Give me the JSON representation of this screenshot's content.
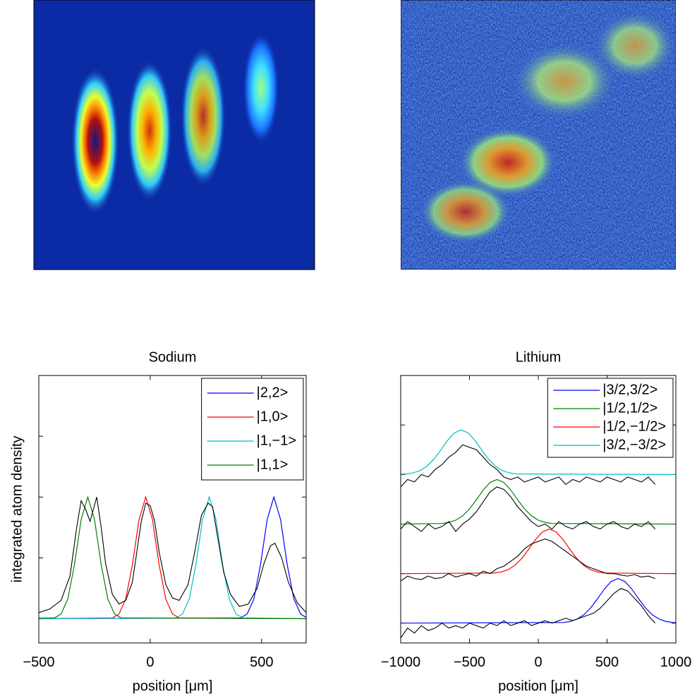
{
  "chart_data": [
    {
      "type": "line",
      "title": "Sodium",
      "xlabel": "position [μm]",
      "ylabel": "integrated atom density",
      "xlim": [
        -500,
        700
      ],
      "xticks": [
        {
          "value": -500,
          "label": "−500"
        },
        0,
        500
      ],
      "ylim": [
        -0.2,
        2
      ],
      "yticks": [
        0,
        0.5,
        1,
        1.5
      ],
      "legend": "northeast",
      "series": [
        {
          "name": "|2,2>",
          "color": "#0000ff",
          "x": [
            -500,
            405,
            435,
            465,
            495,
            525,
            555,
            585,
            615,
            645,
            675,
            700
          ],
          "values": [
            0,
            0.006,
            0.038,
            0.16,
            0.443,
            0.816,
            1,
            0.816,
            0.443,
            0.16,
            0.038,
            0.009
          ]
        },
        {
          "name": "|1,0>",
          "color": "#ff0000",
          "x": [
            -500,
            -170,
            -140,
            -110,
            -80,
            -50,
            -20,
            10,
            40,
            70,
            100,
            130,
            700
          ],
          "values": [
            0,
            0.006,
            0.038,
            0.16,
            0.443,
            0.816,
            1,
            0.816,
            0.443,
            0.16,
            0.038,
            0.006,
            0
          ]
        },
        {
          "name": "|1,−1>",
          "color": "#00bfbf",
          "x": [
            -500,
            115,
            145,
            175,
            205,
            235,
            265,
            295,
            325,
            355,
            385,
            415,
            700
          ],
          "values": [
            0,
            0.006,
            0.038,
            0.16,
            0.443,
            0.816,
            1,
            0.816,
            0.443,
            0.16,
            0.038,
            0.006,
            0
          ]
        },
        {
          "name": "|1,1>",
          "color": "#008000",
          "x": [
            -500,
            -430,
            -400,
            -370,
            -340,
            -310,
            -280,
            -250,
            -220,
            -190,
            -160,
            -130,
            700
          ],
          "values": [
            0.004,
            0.006,
            0.038,
            0.16,
            0.443,
            0.816,
            1,
            0.816,
            0.443,
            0.16,
            0.038,
            0.006,
            0
          ]
        },
        {
          "color": "#000000",
          "x": [
            -500,
            -450,
            -400,
            -360,
            -330,
            -310,
            -290,
            -270,
            -255,
            -240,
            -220,
            -200,
            -170,
            -140,
            -110,
            -80,
            -60,
            -40,
            -20,
            0,
            20,
            40,
            70,
            100,
            130,
            170,
            200,
            230,
            260,
            280,
            300,
            330,
            360,
            400,
            440,
            480,
            510,
            540,
            560,
            590,
            620,
            660,
            700
          ],
          "values": [
            0.05,
            0.08,
            0.15,
            0.35,
            0.75,
            0.97,
            0.9,
            0.8,
            0.9,
            1.0,
            0.75,
            0.45,
            0.2,
            0.12,
            0.15,
            0.3,
            0.55,
            0.8,
            0.95,
            0.93,
            0.8,
            0.55,
            0.28,
            0.17,
            0.15,
            0.28,
            0.55,
            0.85,
            0.95,
            0.92,
            0.7,
            0.38,
            0.2,
            0.1,
            0.12,
            0.25,
            0.45,
            0.6,
            0.62,
            0.5,
            0.3,
            0.13,
            0.05
          ]
        }
      ]
    },
    {
      "type": "line",
      "title": "Lithium",
      "xlabel": "position [μm]",
      "xlim": [
        -1000,
        1000
      ],
      "xticks": [
        {
          "value": -1000,
          "label": "−1000"
        },
        {
          "value": -500,
          "label": "−500"
        },
        0,
        500,
        1000
      ],
      "ylim": [
        -0.4,
        5
      ],
      "yticks": [
        0,
        1,
        2,
        3,
        4
      ],
      "legend": "northeast",
      "series": [
        {
          "name": "|3/2,3/2>",
          "color": "#0000ff",
          "x": [
            -1000,
            180,
            230,
            280,
            330,
            380,
            430,
            480,
            530,
            580,
            630,
            680,
            730,
            780,
            830,
            880,
            930,
            980,
            1000
          ],
          "values": [
            0,
            0.012,
            0.033,
            0.079,
            0.166,
            0.305,
            0.49,
            0.687,
            0.841,
            0.9,
            0.841,
            0.687,
            0.49,
            0.305,
            0.166,
            0.079,
            0.033,
            0.012,
            0.009
          ]
        },
        {
          "name": "|1/2,1/2>",
          "color": "#008000",
          "x": [
            -1000,
            -700,
            -650,
            -600,
            -550,
            -500,
            -450,
            -400,
            -350,
            -300,
            -250,
            -200,
            -150,
            -100,
            -50,
            0,
            50,
            100,
            1000
          ],
          "values": [
            2,
            2.012,
            2.033,
            2.079,
            2.166,
            2.305,
            2.49,
            2.687,
            2.841,
            2.9,
            2.841,
            2.687,
            2.49,
            2.305,
            2.166,
            2.079,
            2.033,
            2.012,
            2
          ]
        },
        {
          "name": "|1/2,−1/2>",
          "color": "#ff0000",
          "x": [
            -1000,
            -320,
            -270,
            -220,
            -170,
            -120,
            -70,
            -20,
            30,
            80,
            130,
            180,
            230,
            280,
            330,
            380,
            430,
            480,
            1000
          ],
          "values": [
            1,
            1.012,
            1.033,
            1.079,
            1.166,
            1.305,
            1.49,
            1.687,
            1.841,
            1.9,
            1.841,
            1.687,
            1.49,
            1.305,
            1.166,
            1.079,
            1.033,
            1.012,
            1
          ]
        },
        {
          "name": "|3/2,−3/2>",
          "color": "#00bfbf",
          "x": [
            -1000,
            -960,
            -910,
            -860,
            -810,
            -760,
            -710,
            -660,
            -610,
            -560,
            -510,
            -460,
            -410,
            -360,
            -310,
            -260,
            -210,
            -160,
            1000
          ],
          "values": [
            3.007,
            3.012,
            3.033,
            3.079,
            3.166,
            3.305,
            3.49,
            3.687,
            3.841,
            3.9,
            3.841,
            3.687,
            3.49,
            3.305,
            3.166,
            3.079,
            3.033,
            3.012,
            3
          ]
        },
        {
          "color": "#000000",
          "x": [
            -1000,
            -950,
            -900,
            -850,
            -800,
            -750,
            -700,
            -650,
            -600,
            -550,
            -500,
            -450,
            -400,
            -350,
            -300,
            -250,
            -200,
            -150,
            -100,
            -50,
            0,
            50,
            100,
            150,
            200,
            250,
            300,
            350,
            400,
            450,
            500,
            550,
            600,
            650,
            700,
            750,
            800,
            850
          ],
          "values": [
            2.75,
            2.9,
            2.85,
            3.0,
            2.95,
            3.1,
            3.2,
            3.35,
            3.45,
            3.6,
            3.55,
            3.5,
            3.35,
            3.2,
            3.1,
            2.95,
            2.9,
            2.95,
            2.85,
            2.9,
            2.95,
            2.85,
            2.9,
            2.95,
            2.8,
            2.9,
            2.85,
            2.95,
            2.9,
            2.85,
            2.95,
            2.9,
            2.85,
            2.95,
            2.9,
            2.85,
            2.95,
            2.8
          ]
        },
        {
          "color": "#000000",
          "x": [
            -1000,
            -950,
            -900,
            -850,
            -800,
            -750,
            -700,
            -650,
            -600,
            -550,
            -500,
            -450,
            -400,
            -350,
            -300,
            -250,
            -200,
            -150,
            -100,
            -50,
            0,
            50,
            100,
            150,
            200,
            250,
            300,
            350,
            400,
            450,
            500,
            550,
            600,
            650,
            700,
            750,
            800,
            850
          ],
          "values": [
            1.9,
            2.05,
            1.95,
            1.85,
            2.0,
            1.9,
            1.95,
            2.05,
            1.85,
            2.0,
            2.1,
            2.25,
            2.45,
            2.65,
            2.75,
            2.7,
            2.55,
            2.35,
            2.2,
            2.05,
            1.95,
            2.0,
            1.9,
            2.05,
            1.95,
            1.9,
            2.0,
            2.05,
            1.95,
            1.9,
            2.0,
            2.05,
            1.95,
            1.9,
            2.0,
            1.95,
            2.05,
            1.9
          ]
        },
        {
          "color": "#000000",
          "x": [
            -1000,
            -950,
            -900,
            -850,
            -800,
            -750,
            -700,
            -650,
            -600,
            -550,
            -500,
            -450,
            -400,
            -350,
            -300,
            -250,
            -200,
            -150,
            -100,
            -50,
            0,
            50,
            100,
            150,
            200,
            250,
            300,
            350,
            400,
            450,
            500,
            550,
            600,
            650,
            700,
            750,
            800,
            850
          ],
          "values": [
            0.85,
            0.95,
            0.9,
            0.88,
            0.95,
            0.9,
            0.92,
            1.0,
            0.93,
            0.97,
            1.0,
            0.95,
            1.05,
            1.0,
            1.1,
            1.15,
            1.25,
            1.35,
            1.5,
            1.6,
            1.65,
            1.7,
            1.65,
            1.55,
            1.45,
            1.35,
            1.25,
            1.15,
            1.1,
            1.05,
            1.0,
            1.0,
            0.97,
            0.95,
            0.98,
            0.93,
            0.95,
            0.9
          ]
        },
        {
          "color": "#000000",
          "x": [
            -1000,
            -950,
            -900,
            -850,
            -800,
            -750,
            -700,
            -650,
            -600,
            -550,
            -500,
            -450,
            -400,
            -350,
            -300,
            -250,
            -200,
            -150,
            -100,
            -50,
            0,
            50,
            100,
            150,
            200,
            250,
            300,
            350,
            400,
            450,
            500,
            550,
            600,
            650,
            700,
            750,
            800,
            850
          ],
          "values": [
            -0.3,
            -0.1,
            -0.2,
            -0.05,
            -0.15,
            -0.1,
            0.0,
            -0.1,
            -0.05,
            -0.1,
            0.0,
            -0.05,
            -0.1,
            0.0,
            -0.05,
            0.05,
            -0.05,
            0.0,
            0.05,
            -0.05,
            0.0,
            0.05,
            0.0,
            0.05,
            0.1,
            0.05,
            0.1,
            0.15,
            0.2,
            0.3,
            0.45,
            0.6,
            0.7,
            0.65,
            0.5,
            0.35,
            0.15,
            0.0
          ]
        }
      ]
    }
  ]
}
